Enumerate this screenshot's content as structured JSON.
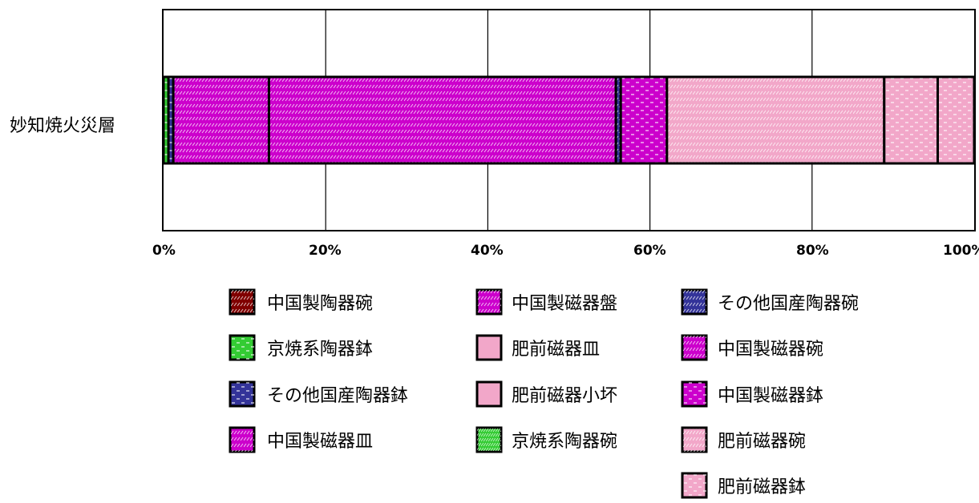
{
  "chart_data": {
    "type": "bar",
    "orientation": "horizontal",
    "stacked": "percent",
    "categories": [
      "妙知焼火災層"
    ],
    "x_ticks": [
      "0%",
      "20%",
      "40%",
      "60%",
      "80%",
      "100%"
    ],
    "xlim": [
      0,
      100
    ],
    "grid": true,
    "legend_position": "bottom",
    "series": [
      {
        "name": "中国製陶器碗",
        "values": [
          0.0
        ],
        "color": "#800000"
      },
      {
        "name": "京焼系陶器鉢",
        "values": [
          0.6
        ],
        "color": "#33cc33"
      },
      {
        "name": "その他国産陶器鉢",
        "values": [
          0.6
        ],
        "color": "#333399"
      },
      {
        "name": "中国製磁器皿",
        "values": [
          11.8
        ],
        "color": "#cc00cc"
      },
      {
        "name": "中国製磁器盤",
        "values": [
          42.8
        ],
        "color": "#cc00cc"
      },
      {
        "name": "肥前磁器皿",
        "values": [
          0.0
        ],
        "color": "#f2a7c9"
      },
      {
        "name": "肥前磁器小坏",
        "values": [
          0.0
        ],
        "color": "#f2a7c9"
      },
      {
        "name": "京焼系陶器碗",
        "values": [
          0.0
        ],
        "color": "#33cc33"
      },
      {
        "name": "その他国産陶器碗",
        "values": [
          0.6
        ],
        "color": "#333399"
      },
      {
        "name": "中国製磁器碗",
        "values": [
          0.0
        ],
        "color": "#cc00cc"
      },
      {
        "name": "中国製磁器鉢",
        "values": [
          5.7
        ],
        "color": "#cc00cc"
      },
      {
        "name": "肥前磁器碗",
        "values": [
          26.8
        ],
        "color": "#f2a7c9"
      },
      {
        "name": "肥前磁器鉢",
        "values": [
          6.6
        ],
        "color": "#f2a7c9"
      }
    ],
    "tail_segment": {
      "values": [
        4.5
      ],
      "color": "#f2a7c9"
    }
  }
}
